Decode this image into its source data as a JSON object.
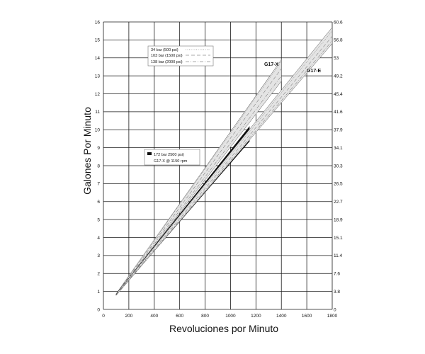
{
  "chart_data": {
    "type": "line",
    "xlabel": "Revoluciones por Minuto",
    "ylabel": "Galones Por Minuto",
    "xlim": [
      0,
      1800
    ],
    "ylim": [
      0,
      16
    ],
    "x_ticks": [
      0,
      200,
      400,
      600,
      800,
      1000,
      1200,
      1400,
      1600,
      1800
    ],
    "y_ticks": [
      0,
      1,
      2,
      3,
      4,
      5,
      6,
      7,
      8,
      9,
      10,
      11,
      12,
      13,
      14,
      15,
      16
    ],
    "y2_ticks": [
      "0",
      "3.8",
      "7.6",
      "11.4",
      "15.1",
      "18.9",
      "22.7",
      "26.5",
      "30.3",
      "34.1",
      "37.9",
      "41.6",
      "45.4",
      "49.2",
      "53",
      "56.8",
      "60.6"
    ],
    "grid": true,
    "legend_pressure": {
      "placement": "top-left",
      "entries": [
        {
          "label": "34 bar (500 psi)",
          "style": "dotted"
        },
        {
          "label": "103 bar (1500 psi)",
          "style": "dashed"
        },
        {
          "label": "138 bar (2000 psi)",
          "style": "dashdot"
        }
      ]
    },
    "legend_highlight": {
      "placement": "center-left",
      "lines": [
        "172 bar 2500 psi)",
        "G17-X @ 1150 rpm"
      ]
    },
    "series": [
      {
        "name": "G17-X",
        "band_upper": [
          [
            100,
            0.87
          ],
          [
            1400,
            13.9
          ]
        ],
        "band_lower": [
          [
            100,
            0.8
          ],
          [
            1400,
            12.7
          ]
        ],
        "lines": [
          {
            "style": "dotted",
            "points": [
              [
                100,
                0.86
              ],
              [
                1400,
                13.8
              ]
            ]
          },
          {
            "style": "dashed",
            "points": [
              [
                100,
                0.84
              ],
              [
                1400,
                13.4
              ]
            ]
          },
          {
            "style": "dashdot",
            "points": [
              [
                100,
                0.82
              ],
              [
                1400,
                13.0
              ]
            ]
          }
        ],
        "highlight": {
          "x": [
            100,
            1150
          ],
          "upper": [
            0.87,
            10.2
          ],
          "lower": [
            0.8,
            9.35
          ]
        }
      },
      {
        "name": "G17-E",
        "band_upper": [
          [
            100,
            0.86
          ],
          [
            1800,
            15.7
          ]
        ],
        "band_lower": [
          [
            100,
            0.78
          ],
          [
            1800,
            14.8
          ]
        ],
        "lines": [
          {
            "style": "dotted",
            "points": [
              [
                100,
                0.85
              ],
              [
                1800,
                15.5
              ]
            ]
          },
          {
            "style": "dashed",
            "points": [
              [
                100,
                0.82
              ],
              [
                1800,
                15.2
              ]
            ]
          },
          {
            "style": "dashdot",
            "points": [
              [
                100,
                0.8
              ],
              [
                1800,
                14.95
              ]
            ]
          }
        ]
      }
    ]
  },
  "colors": {
    "band_fill": "#e4e4e4",
    "band_edge": "#555555",
    "highlight": "#111111",
    "grid": "#1a1a1a"
  }
}
